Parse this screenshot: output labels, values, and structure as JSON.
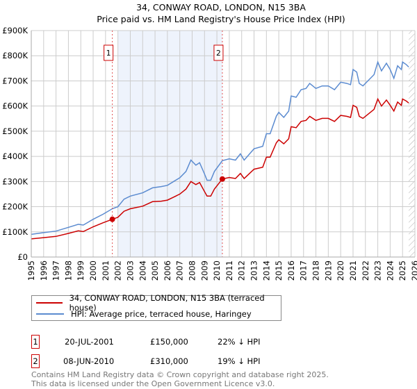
{
  "chart_data": {
    "type": "line",
    "title": "34, CONWAY ROAD, LONDON, N15 3BA",
    "subtitle": "Price paid vs. HM Land Registry's House Price Index (HPI)",
    "xlim": [
      1995,
      2026
    ],
    "ylim": [
      0,
      900000
    ],
    "y_ticks": [
      {
        "v": 0,
        "label": "£0"
      },
      {
        "v": 100000,
        "label": "£100K"
      },
      {
        "v": 200000,
        "label": "£200K"
      },
      {
        "v": 300000,
        "label": "£300K"
      },
      {
        "v": 400000,
        "label": "£400K"
      },
      {
        "v": 500000,
        "label": "£500K"
      },
      {
        "v": 600000,
        "label": "£600K"
      },
      {
        "v": 700000,
        "label": "£700K"
      },
      {
        "v": 800000,
        "label": "£800K"
      },
      {
        "v": 900000,
        "label": "£900K"
      }
    ],
    "x_ticks": [
      "1995",
      "1996",
      "1997",
      "1998",
      "1999",
      "2000",
      "2001",
      "2002",
      "2003",
      "2004",
      "2005",
      "2006",
      "2007",
      "2008",
      "2009",
      "2010",
      "2011",
      "2012",
      "2013",
      "2014",
      "2015",
      "2016",
      "2017",
      "2018",
      "2019",
      "2020",
      "2021",
      "2022",
      "2023",
      "2024",
      "2025",
      "2026"
    ],
    "grid": true,
    "shaded_period": [
      2002.0,
      2010.44
    ],
    "hatched_after": 2025.5,
    "x": [
      1995,
      1996,
      1997,
      1998,
      1998.8,
      1999.2,
      2000,
      2000.8,
      2001.55,
      2002,
      2002.5,
      2003,
      2004,
      2004.8,
      2005.5,
      2006,
      2006.5,
      2007,
      2007.5,
      2007.9,
      2008.3,
      2008.6,
      2009,
      2009.2,
      2009.5,
      2009.8,
      2010.44,
      2011,
      2011.5,
      2011.9,
      2012.2,
      2013,
      2013.7,
      2014,
      2014.3,
      2014.8,
      2015,
      2015.4,
      2015.8,
      2016,
      2016.4,
      2016.8,
      2017.2,
      2017.5,
      2018,
      2018.5,
      2019,
      2019.5,
      2020,
      2020.5,
      2020.8,
      2021,
      2021.3,
      2021.5,
      2021.8,
      2022.3,
      2022.7,
      2023,
      2023.3,
      2023.7,
      2024,
      2024.3,
      2024.6,
      2024.9,
      2025,
      2025.3,
      2025.5
    ],
    "series": [
      {
        "name": "34, CONWAY ROAD, LONDON, N15 3BA (terraced house)",
        "color": "#cc0000",
        "values": [
          72,
          77,
          82,
          94,
          104,
          101,
          120,
          136,
          150,
          158,
          182,
          192,
          202,
          220,
          222,
          226,
          238,
          250,
          270,
          300,
          288,
          296,
          260,
          242,
          242,
          270,
          310,
          316,
          312,
          332,
          312,
          349,
          357,
          397,
          397,
          454,
          466,
          450,
          470,
          518,
          514,
          539,
          543,
          559,
          543,
          551,
          551,
          539,
          563,
          559,
          555,
          603,
          595,
          559,
          551,
          571,
          587,
          628,
          600,
          624,
          603,
          580,
          616,
          603,
          628,
          620,
          612
        ],
        "unit": "£K"
      },
      {
        "name": "HPI: Average price, terraced house, Haringey",
        "color": "#5b8bd0",
        "values": [
          90,
          97,
          103,
          118,
          130,
          127,
          150,
          170,
          192,
          200,
          230,
          242,
          255,
          275,
          280,
          285,
          300,
          315,
          340,
          385,
          365,
          375,
          330,
          305,
          305,
          340,
          383,
          390,
          385,
          410,
          385,
          430,
          440,
          490,
          490,
          560,
          575,
          555,
          580,
          640,
          635,
          665,
          670,
          690,
          670,
          680,
          680,
          665,
          695,
          690,
          685,
          745,
          735,
          690,
          680,
          705,
          725,
          775,
          740,
          770,
          745,
          710,
          760,
          745,
          775,
          765,
          755
        ],
        "unit": "£K"
      }
    ],
    "sales": [
      {
        "label": "1",
        "x": 2001.55,
        "price": 150000,
        "date": "20-JUL-2001",
        "price_text": "£150,000",
        "hpi_text": "22% ↓ HPI"
      },
      {
        "label": "2",
        "x": 2010.44,
        "price": 310000,
        "date": "08-JUN-2010",
        "price_text": "£310,000",
        "hpi_text": "19% ↓ HPI"
      }
    ]
  },
  "legend": {
    "red": "34, CONWAY ROAD, LONDON, N15 3BA (terraced house)",
    "blue": "HPI: Average price, terraced house, Haringey"
  },
  "footer": {
    "line1": "Contains HM Land Registry data © Crown copyright and database right 2025.",
    "line2": "This data is licensed under the Open Government Licence v3.0."
  }
}
